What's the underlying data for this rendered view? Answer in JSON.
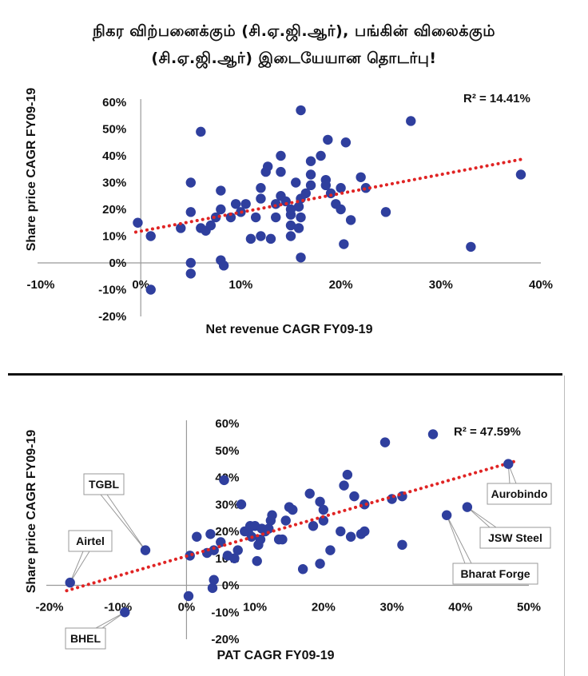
{
  "title": {
    "line1": "நிகர விற்பனைக்கும் (சி.ஏ.ஜி.ஆர்), பங்கின் விலைக்கும்",
    "line2": "(சி.ஏ.ஜி.ஆர்) இடையேயான தொடர்பு!"
  },
  "colors": {
    "marker": "#2f3f9e",
    "trend": "#e02424",
    "axis": "#999999"
  },
  "chart_data": [
    {
      "type": "scatter",
      "xlabel": "Net revenue CAGR FY09-19",
      "ylabel": "Share price CAGR FY09-19",
      "r2_label": "R² = 14.41%",
      "xlim": [
        -10,
        40
      ],
      "ylim": [
        -20,
        60
      ],
      "xticks": [
        -10,
        0,
        10,
        20,
        30,
        40
      ],
      "yticks": [
        -20,
        -10,
        0,
        10,
        20,
        30,
        40,
        50,
        60
      ],
      "xtick_labels": [
        "-10%",
        "0%",
        "10%",
        "20%",
        "30%",
        "40%"
      ],
      "ytick_labels": [
        "-20%",
        "-10%",
        "0%",
        "10%",
        "20%",
        "30%",
        "40%",
        "50%",
        "60%"
      ],
      "trendline": {
        "x": [
          -0.5,
          38.5
        ],
        "y": [
          11.5,
          39
        ]
      },
      "points": [
        [
          -0.3,
          15
        ],
        [
          1,
          10
        ],
        [
          1,
          -10
        ],
        [
          4,
          13
        ],
        [
          5,
          19
        ],
        [
          5,
          30
        ],
        [
          5,
          0
        ],
        [
          5,
          -4
        ],
        [
          6,
          49
        ],
        [
          6,
          13
        ],
        [
          6.5,
          12
        ],
        [
          7,
          14
        ],
        [
          7.5,
          17
        ],
        [
          8,
          27
        ],
        [
          8,
          1
        ],
        [
          8,
          20
        ],
        [
          8.3,
          -1
        ],
        [
          9,
          17
        ],
        [
          9.5,
          22
        ],
        [
          10,
          19
        ],
        [
          10.5,
          22
        ],
        [
          11,
          9
        ],
        [
          11.5,
          17
        ],
        [
          12,
          24
        ],
        [
          12,
          28
        ],
        [
          12,
          10
        ],
        [
          12.5,
          34
        ],
        [
          12.7,
          36
        ],
        [
          13,
          9
        ],
        [
          13.5,
          17
        ],
        [
          13.5,
          22
        ],
        [
          14,
          34
        ],
        [
          14,
          40
        ],
        [
          14,
          25
        ],
        [
          14.5,
          23
        ],
        [
          15,
          14
        ],
        [
          15,
          18
        ],
        [
          15,
          20
        ],
        [
          15,
          10
        ],
        [
          15.5,
          30
        ],
        [
          15.8,
          21
        ],
        [
          15.8,
          13
        ],
        [
          16,
          57
        ],
        [
          16,
          24
        ],
        [
          16,
          17
        ],
        [
          16,
          2
        ],
        [
          16.5,
          26
        ],
        [
          17,
          38
        ],
        [
          17,
          29
        ],
        [
          17,
          33
        ],
        [
          18,
          40
        ],
        [
          18.5,
          31
        ],
        [
          18.5,
          29
        ],
        [
          18.7,
          46
        ],
        [
          19,
          26
        ],
        [
          19.5,
          22
        ],
        [
          20,
          20
        ],
        [
          20,
          28
        ],
        [
          20.3,
          7
        ],
        [
          20.5,
          45
        ],
        [
          21,
          16
        ],
        [
          22,
          32
        ],
        [
          22.5,
          28
        ],
        [
          24.5,
          19
        ],
        [
          27,
          53
        ],
        [
          33,
          6
        ],
        [
          38,
          33
        ]
      ]
    },
    {
      "type": "scatter",
      "xlabel": "PAT CAGR FY09-19",
      "ylabel": "Share price CAGR FY09-19",
      "r2_label": "R² = 47.59%",
      "xlim": [
        -20,
        50
      ],
      "ylim": [
        -20,
        60
      ],
      "xticks": [
        -20,
        -10,
        0,
        10,
        20,
        30,
        40,
        50
      ],
      "yticks": [
        -20,
        -10,
        0,
        10,
        20,
        30,
        40,
        50,
        60
      ],
      "xtick_labels": [
        "-20%",
        "-10%",
        "0%",
        "10%",
        "20%",
        "30%",
        "40%",
        "50%"
      ],
      "ytick_labels": [
        "-20%",
        "-10%",
        "0%",
        "10%",
        "20%",
        "30%",
        "40%",
        "50%",
        "60%"
      ],
      "trendline": {
        "x": [
          -17.5,
          48
        ],
        "y": [
          -2,
          46
        ]
      },
      "labeled_points": [
        {
          "name": "TGBL",
          "x": -6,
          "y": 13
        },
        {
          "name": "Airtel",
          "x": -17,
          "y": 1
        },
        {
          "name": "BHEL",
          "x": -9,
          "y": -10
        },
        {
          "name": "Aurobindo",
          "x": 47,
          "y": 45
        },
        {
          "name": "JSW Steel",
          "x": 41,
          "y": 29
        },
        {
          "name": "Bharat Forge",
          "x": 38,
          "y": 26
        }
      ],
      "points": [
        [
          0.3,
          -4
        ],
        [
          0.5,
          11
        ],
        [
          1.5,
          18
        ],
        [
          3,
          12
        ],
        [
          3.5,
          19
        ],
        [
          3.8,
          -1
        ],
        [
          4,
          2
        ],
        [
          4,
          13
        ],
        [
          5,
          16
        ],
        [
          5.5,
          39
        ],
        [
          6,
          11
        ],
        [
          7,
          10
        ],
        [
          7.5,
          13
        ],
        [
          8,
          30
        ],
        [
          8.5,
          20
        ],
        [
          9,
          20
        ],
        [
          9.3,
          22
        ],
        [
          9.5,
          18
        ],
        [
          10,
          22
        ],
        [
          10.3,
          9
        ],
        [
          10.5,
          15
        ],
        [
          10.8,
          17
        ],
        [
          11,
          21
        ],
        [
          11.5,
          20
        ],
        [
          12,
          21
        ],
        [
          12.3,
          24
        ],
        [
          12.5,
          26
        ],
        [
          13.5,
          17
        ],
        [
          14,
          17
        ],
        [
          14.5,
          24
        ],
        [
          15,
          29
        ],
        [
          15.5,
          28
        ],
        [
          17,
          6
        ],
        [
          18,
          34
        ],
        [
          18.5,
          22
        ],
        [
          19.5,
          8
        ],
        [
          19.5,
          31
        ],
        [
          20,
          28
        ],
        [
          20,
          24
        ],
        [
          21,
          13
        ],
        [
          22.5,
          20
        ],
        [
          23,
          37
        ],
        [
          23.5,
          41
        ],
        [
          24,
          18
        ],
        [
          24.5,
          33
        ],
        [
          25.5,
          19
        ],
        [
          26,
          20
        ],
        [
          26,
          30
        ],
        [
          29,
          53
        ],
        [
          30,
          32
        ],
        [
          31.5,
          33
        ],
        [
          31.5,
          15
        ],
        [
          36,
          56
        ]
      ]
    }
  ]
}
